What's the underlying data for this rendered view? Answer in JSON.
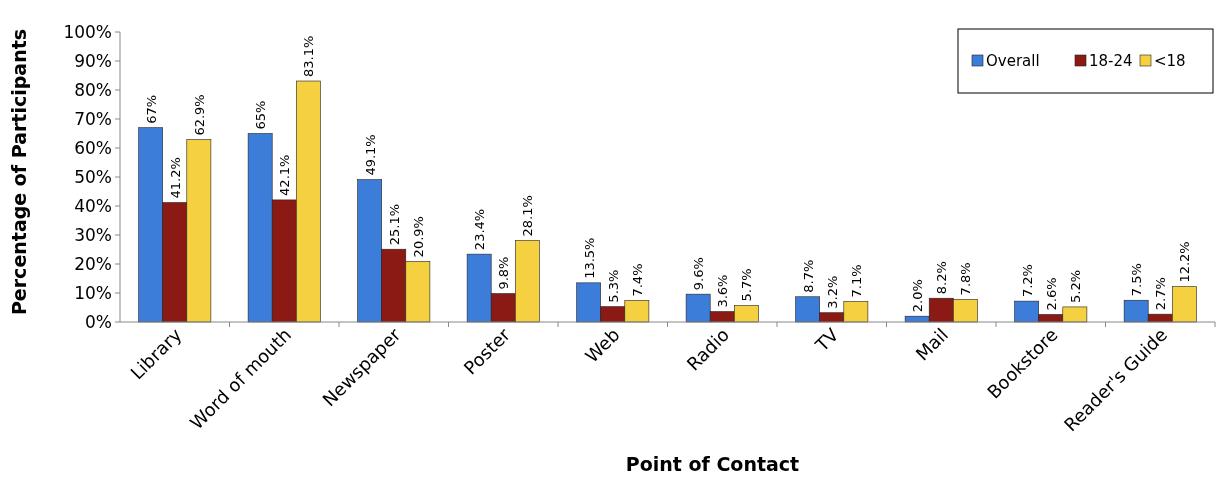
{
  "chart_data": {
    "type": "bar",
    "xlabel": "Point of Contact",
    "ylabel": "Percentage of Participants",
    "categories": [
      "Library",
      "Word of mouth",
      "Newspaper",
      "Poster",
      "Web",
      "Radio",
      "TV",
      "Mail",
      "Bookstore",
      "Reader's Guide"
    ],
    "series": [
      {
        "name": "Overall",
        "color": "#3b7dd8",
        "values": [
          67,
          65,
          49.1,
          23.4,
          13.5,
          9.6,
          8.7,
          2.0,
          7.2,
          7.5
        ],
        "value_labels": [
          "67%",
          "65%",
          "49.1%",
          "23.4%",
          "13.5%",
          "9.6%",
          "8.7%",
          "2.0%",
          "7.2%",
          "7.5%"
        ]
      },
      {
        "name": "18-24",
        "color": "#8b1a14",
        "values": [
          41.2,
          42.1,
          25.1,
          9.8,
          5.3,
          3.6,
          3.2,
          8.2,
          2.6,
          2.7
        ],
        "value_labels": [
          "41.2%",
          "42.1%",
          "25.1%",
          "9.8%",
          "5.3%",
          "3.6%",
          "3.2%",
          "8.2%",
          "2.6%",
          "2.7%"
        ]
      },
      {
        "name": "<18",
        "color": "#f5d040",
        "values": [
          62.9,
          83.1,
          20.9,
          28.1,
          7.4,
          5.7,
          7.1,
          7.8,
          5.2,
          12.2
        ],
        "value_labels": [
          "62.9%",
          "83.1%",
          "20.9%",
          "28.1%",
          "7.4%",
          "5.7%",
          "7.1%",
          "7.8%",
          "5.2%",
          "12.2%"
        ]
      }
    ],
    "ylim": [
      0,
      100
    ],
    "yticks": [
      {
        "value": 0,
        "label": "0%"
      },
      {
        "value": 10,
        "label": "10%"
      },
      {
        "value": 20,
        "label": "20%"
      },
      {
        "value": 30,
        "label": "30%"
      },
      {
        "value": 40,
        "label": "40%"
      },
      {
        "value": 50,
        "label": "50%"
      },
      {
        "value": 60,
        "label": "60%"
      },
      {
        "value": 70,
        "label": "70%"
      },
      {
        "value": 80,
        "label": "80%"
      },
      {
        "value": 90,
        "label": "90%"
      },
      {
        "value": 100,
        "label": "100%"
      }
    ],
    "legend": "top right",
    "grid": false
  }
}
